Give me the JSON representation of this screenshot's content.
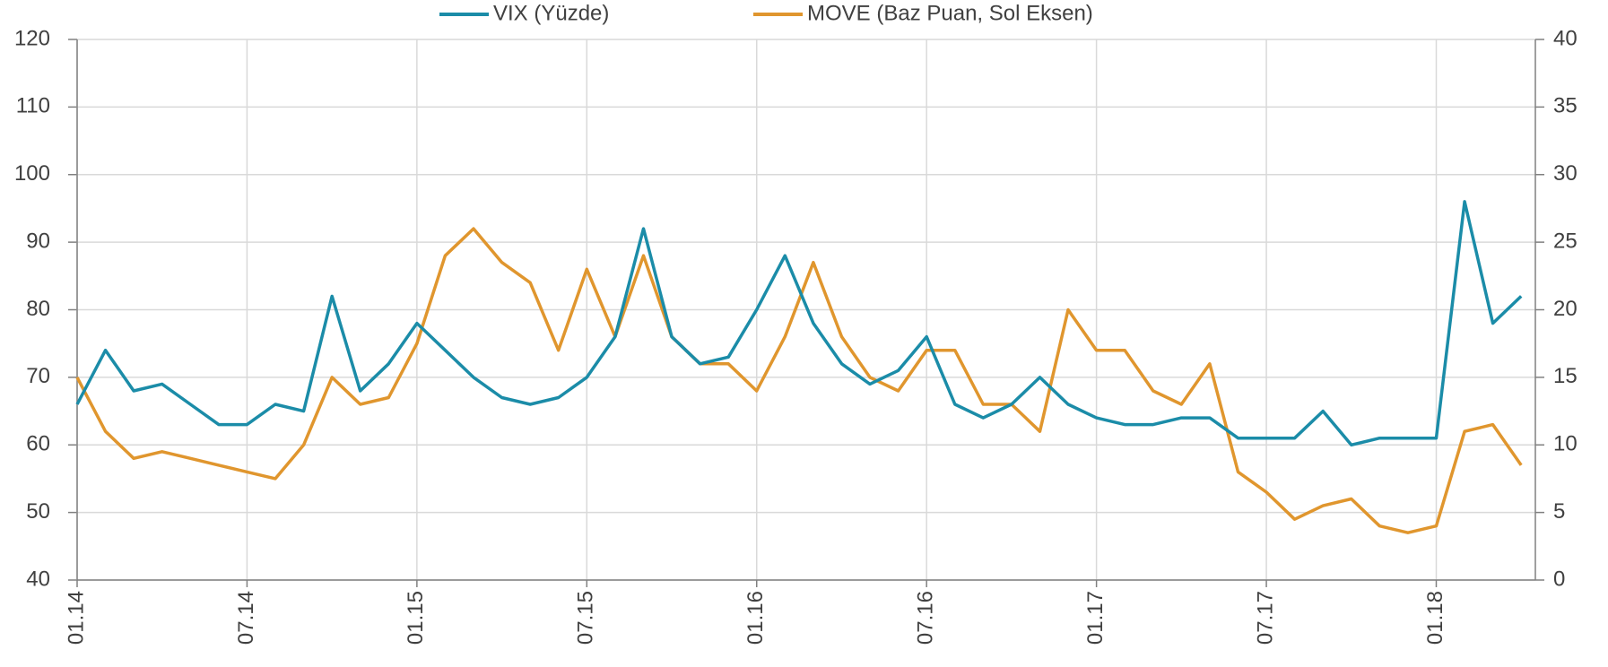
{
  "chart_data": {
    "type": "line",
    "categories": [
      "01.14",
      null,
      null,
      null,
      null,
      null,
      "07.14",
      null,
      null,
      null,
      null,
      null,
      "01.15",
      null,
      null,
      null,
      null,
      null,
      "07.15",
      null,
      null,
      null,
      null,
      null,
      "01.16",
      null,
      null,
      null,
      null,
      null,
      "07.16",
      null,
      null,
      null,
      null,
      null,
      "01.17",
      null,
      null,
      null,
      null,
      null,
      "07.17",
      null,
      null,
      null,
      null,
      null,
      "01.18",
      null,
      null,
      null
    ],
    "series": [
      {
        "name": "VIX (Yüzde)",
        "color": "#1b8ca8",
        "axis": "y2",
        "values": [
          13,
          17,
          14,
          14.5,
          13,
          11.5,
          11.5,
          13,
          12.5,
          21,
          14,
          16,
          19,
          17,
          15,
          13.5,
          13,
          13.5,
          15,
          18,
          26,
          18,
          16,
          16.5,
          20,
          24,
          19,
          16,
          14.5,
          15.5,
          18,
          13,
          12,
          13,
          15,
          13,
          12,
          11.5,
          11.5,
          12,
          12,
          10.5,
          10.5,
          10.5,
          12.5,
          10,
          10.5,
          10.5,
          10.5,
          28,
          19,
          21
        ]
      },
      {
        "name": "MOVE (Baz Puan, Sol Eksen)",
        "color": "#e0962e",
        "values": [
          70,
          62,
          58,
          59,
          58,
          57,
          56,
          55,
          60,
          70,
          66,
          67,
          75,
          88,
          92,
          87,
          84,
          74,
          86,
          76,
          88,
          76,
          72,
          72,
          68,
          76,
          87,
          76,
          70,
          68,
          74,
          74,
          66,
          66,
          62,
          80,
          74,
          74,
          68,
          66,
          72,
          56,
          53,
          49,
          51,
          52,
          48,
          47,
          48,
          62,
          63,
          57
        ]
      }
    ],
    "ylim": [
      40,
      120
    ],
    "yticks": [
      40,
      50,
      60,
      70,
      80,
      90,
      100,
      110,
      120
    ],
    "y2lim": [
      0,
      40
    ],
    "y2ticks": [
      0,
      5,
      10,
      15,
      20,
      25,
      30,
      35,
      40
    ],
    "grid": true,
    "legend": "top"
  }
}
